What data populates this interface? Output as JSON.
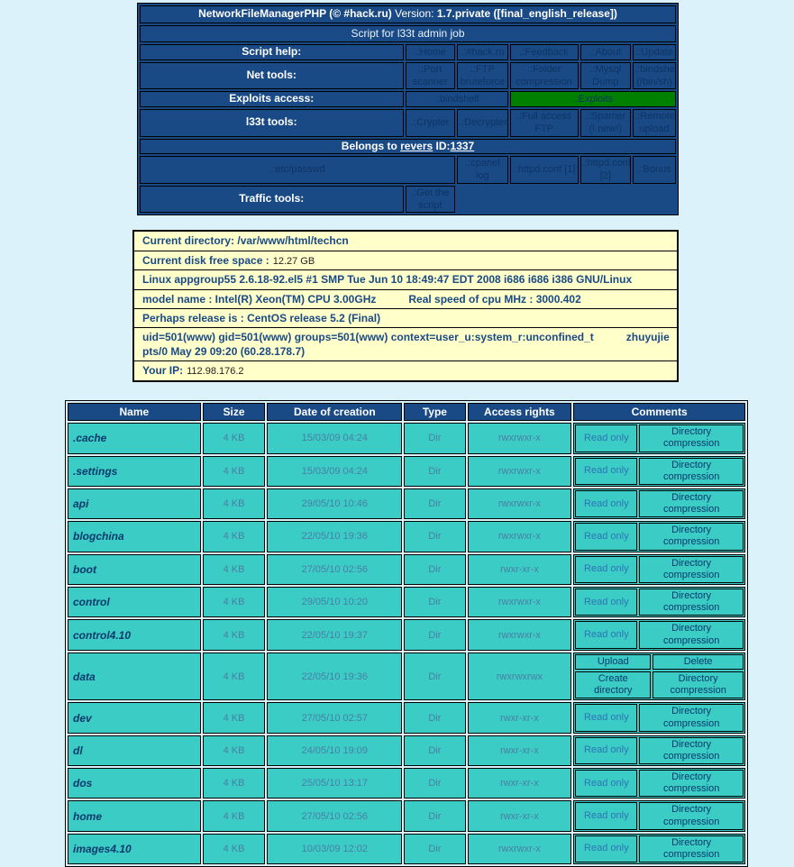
{
  "colors": {
    "page_bg": "#DCF2FB",
    "navy": "#1A4A86",
    "link_text": "#0D3463",
    "exploit_green": "#008000",
    "info_bg": "#FFFFC9",
    "turquoise": "#3BCCC6",
    "readonly_blue": "#2E74B5"
  },
  "header_table": {
    "title": {
      "bold1": "NetworkFileManagerPHP (© #hack.ru)",
      "normal": " Version: ",
      "bold2": "1.7.private ([final_english_release])"
    },
    "subtitle": "Script for l33t admin job",
    "script_help": {
      "label": "Script help:",
      "links": [
        ".:Home",
        ".:#hack.ru",
        ".:Feedback",
        ".:About",
        ".:Update"
      ]
    },
    "net_tools": {
      "label": "Net tools:",
      "links": [
        ".:Port scanner",
        ".:FTP bruteforce",
        ".:Folder compression",
        ".:Mysql Dump",
        ".:bindshell (/bin/sh)"
      ]
    },
    "exploits_row": {
      "label": "Exploits access:",
      "bindshell": ".:bindshell",
      "exploits": ".:Exploits"
    },
    "l33t_tools": {
      "label": "l33t tools:",
      "links": [
        ".:Crypter",
        ".:Decrypter",
        ".:Full access FTP",
        ".:Spamer (! new!)",
        ".:Remote upload"
      ]
    },
    "belongs": {
      "prefix": "Belongs to",
      "owner": "revers",
      "id_label": "ID:",
      "id": "1337"
    },
    "passwd_row": {
      "etc_passwd": ".:etc/passwd",
      "cpanel": ".:cpanel log",
      "httpd1": ".:httpd.conf [1]",
      "httpd2": ".:httpd.conf [2]",
      "bonus": ".:Bonus"
    },
    "traffic": {
      "label": "Traffic tools:",
      "link": ".:Get the script"
    }
  },
  "info_box": {
    "current_directory_label": "Current directory:",
    "current_directory_value": "/var/www/html/techcn",
    "disk_label": "Current disk free space :",
    "disk_value": "12.27 GB",
    "uname": "Linux appgroup55 2.6.18-92.el5 #1 SMP Tue Jun 10 18:49:47 EDT 2008 i686 i686 i386 GNU/Linux",
    "cpu_model": "model name : Intel(R) Xeon(TM) CPU 3.00GHz",
    "cpu_speed": "Real speed of cpu MHz : 3000.402",
    "release": "Perhaps release is :  CentOS release 5.2 (Final)",
    "uid_info": "uid=501(www) gid=501(www) groups=501(www) context=user_u:system_r:unconfined_t",
    "who_info": "zhuyujie pts/0 May 29 09:20 (60.28.178.7)",
    "your_ip_label": "Your IP:",
    "your_ip_value": "112.98.176.2"
  },
  "file_table": {
    "columns": [
      "Name",
      "Size",
      "Date of creation",
      "Type",
      "Access rights",
      "Comments"
    ],
    "rows": [
      {
        "name": ".cache",
        "size": "4 KB",
        "date": "15/03/09 04:24",
        "type": "Dir",
        "rights": "rwxrwxr-x",
        "grid": false,
        "buttons": [
          "Read only",
          "Directory compression"
        ]
      },
      {
        "name": ".settings",
        "size": "4 KB",
        "date": "15/03/09 04:24",
        "type": "Dir",
        "rights": "rwxrwxr-x",
        "grid": false,
        "buttons": [
          "Read only",
          "Directory compression"
        ]
      },
      {
        "name": "api",
        "size": "4 KB",
        "date": "29/05/10 10:46",
        "type": "Dir",
        "rights": "rwxrwxr-x",
        "grid": false,
        "buttons": [
          "Read only",
          "Directory compression"
        ]
      },
      {
        "name": "blogchina",
        "size": "4 KB",
        "date": "22/05/10 19:36",
        "type": "Dir",
        "rights": "rwxrwxr-x",
        "grid": false,
        "buttons": [
          "Read only",
          "Directory compression"
        ]
      },
      {
        "name": "boot",
        "size": "4 KB",
        "date": "27/05/10 02:56",
        "type": "Dir",
        "rights": "rwxr-xr-x",
        "grid": false,
        "buttons": [
          "Read only",
          "Directory compression"
        ]
      },
      {
        "name": "control",
        "size": "4 KB",
        "date": "29/05/10 10:20",
        "type": "Dir",
        "rights": "rwxrwxr-x",
        "grid": false,
        "buttons": [
          "Read only",
          "Directory compression"
        ]
      },
      {
        "name": "control4.10",
        "size": "4 KB",
        "date": "22/05/10 19:37",
        "type": "Dir",
        "rights": "rwxrwxr-x",
        "grid": false,
        "buttons": [
          "Read only",
          "Directory compression"
        ]
      },
      {
        "name": "data",
        "size": "4 KB",
        "date": "22/05/10 19:36",
        "type": "Dir",
        "rights": "rwxrwxrwx",
        "grid": true,
        "buttons": [
          "Upload",
          "Delete",
          "Create directory",
          "Directory compression"
        ]
      },
      {
        "name": "dev",
        "size": "4 KB",
        "date": "27/05/10 02:57",
        "type": "Dir",
        "rights": "rwxr-xr-x",
        "grid": false,
        "buttons": [
          "Read only",
          "Directory compression"
        ]
      },
      {
        "name": "dl",
        "size": "4 KB",
        "date": "24/05/10 19:09",
        "type": "Dir",
        "rights": "rwxr-xr-x",
        "grid": false,
        "buttons": [
          "Read only",
          "Directory compression"
        ]
      },
      {
        "name": "dos",
        "size": "4 KB",
        "date": "25/05/10 13:17",
        "type": "Dir",
        "rights": "rwxr-xr-x",
        "grid": false,
        "buttons": [
          "Read only",
          "Directory compression"
        ]
      },
      {
        "name": "home",
        "size": "4 KB",
        "date": "27/05/10 02:56",
        "type": "Dir",
        "rights": "rwxr-xr-x",
        "grid": false,
        "buttons": [
          "Read only",
          "Directory compression"
        ]
      },
      {
        "name": "images4.10",
        "size": "4 KB",
        "date": "10/03/09 12:02",
        "type": "Dir",
        "rights": "rwxrwxr-x",
        "grid": false,
        "buttons": [
          "Read only",
          "Directory compression"
        ]
      }
    ]
  }
}
